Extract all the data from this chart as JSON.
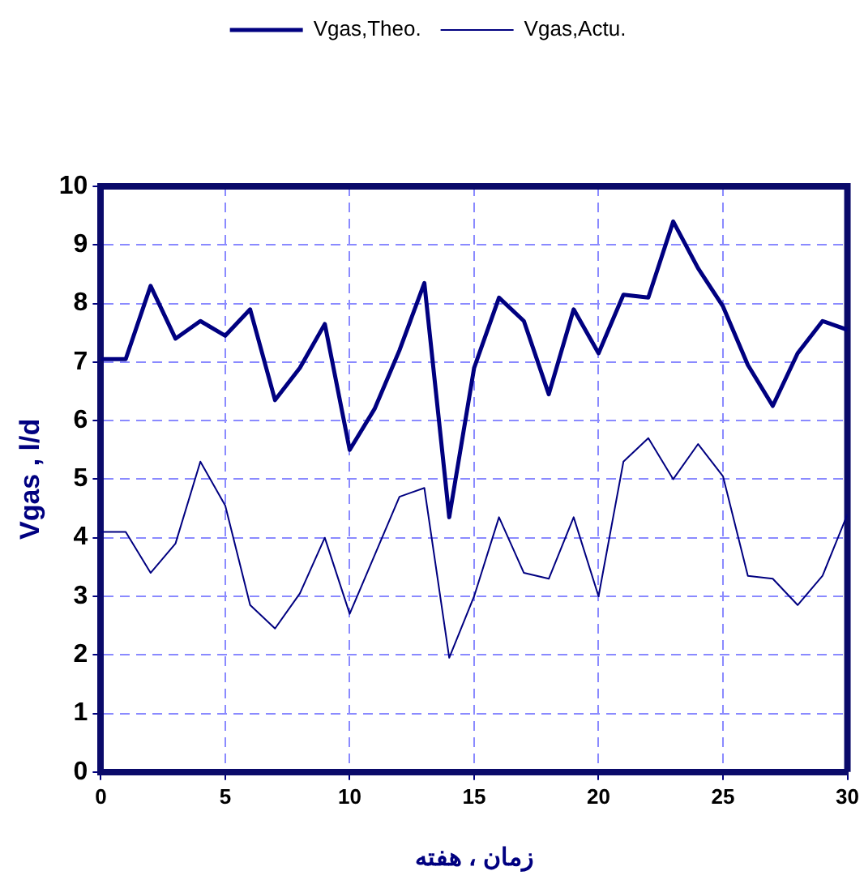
{
  "chart_data": {
    "type": "line",
    "xlabel": "زمان ، هفته",
    "ylabel": "Vgas , l/d",
    "x": [
      0,
      1,
      2,
      3,
      4,
      5,
      6,
      7,
      8,
      9,
      10,
      11,
      12,
      13,
      14,
      15,
      16,
      17,
      18,
      19,
      20,
      21,
      22,
      23,
      24,
      25,
      26,
      27,
      28,
      29,
      30
    ],
    "series": [
      {
        "name": "Vgas,Theo.",
        "color": "#000080",
        "values": [
          7.05,
          7.05,
          8.3,
          7.4,
          7.7,
          7.45,
          7.9,
          6.35,
          6.9,
          7.65,
          5.5,
          6.2,
          7.2,
          8.35,
          4.35,
          6.9,
          8.1,
          7.7,
          6.45,
          7.9,
          7.15,
          8.15,
          8.1,
          9.4,
          8.6,
          7.95,
          6.95,
          6.25,
          7.15,
          7.7,
          7.55
        ]
      },
      {
        "name": "Vgas,Actu.",
        "color": "#000080",
        "values": [
          4.1,
          4.1,
          3.4,
          3.9,
          5.3,
          4.55,
          2.85,
          2.45,
          3.05,
          4.0,
          2.7,
          3.7,
          4.7,
          4.85,
          1.95,
          3.0,
          4.35,
          3.4,
          3.3,
          4.35,
          3.0,
          5.3,
          5.7,
          5.0,
          5.6,
          5.05,
          3.35,
          3.3,
          2.85,
          3.35,
          4.4
        ]
      }
    ],
    "xlim": [
      0,
      30
    ],
    "xticks": [
      0,
      5,
      10,
      15,
      20,
      25,
      30
    ],
    "ylim": [
      0,
      10
    ],
    "yticks": [
      0,
      1,
      2,
      3,
      4,
      5,
      6,
      7,
      8,
      9,
      10
    ],
    "grid": true,
    "legend": "top",
    "marker": "none",
    "line_style": "solid"
  }
}
